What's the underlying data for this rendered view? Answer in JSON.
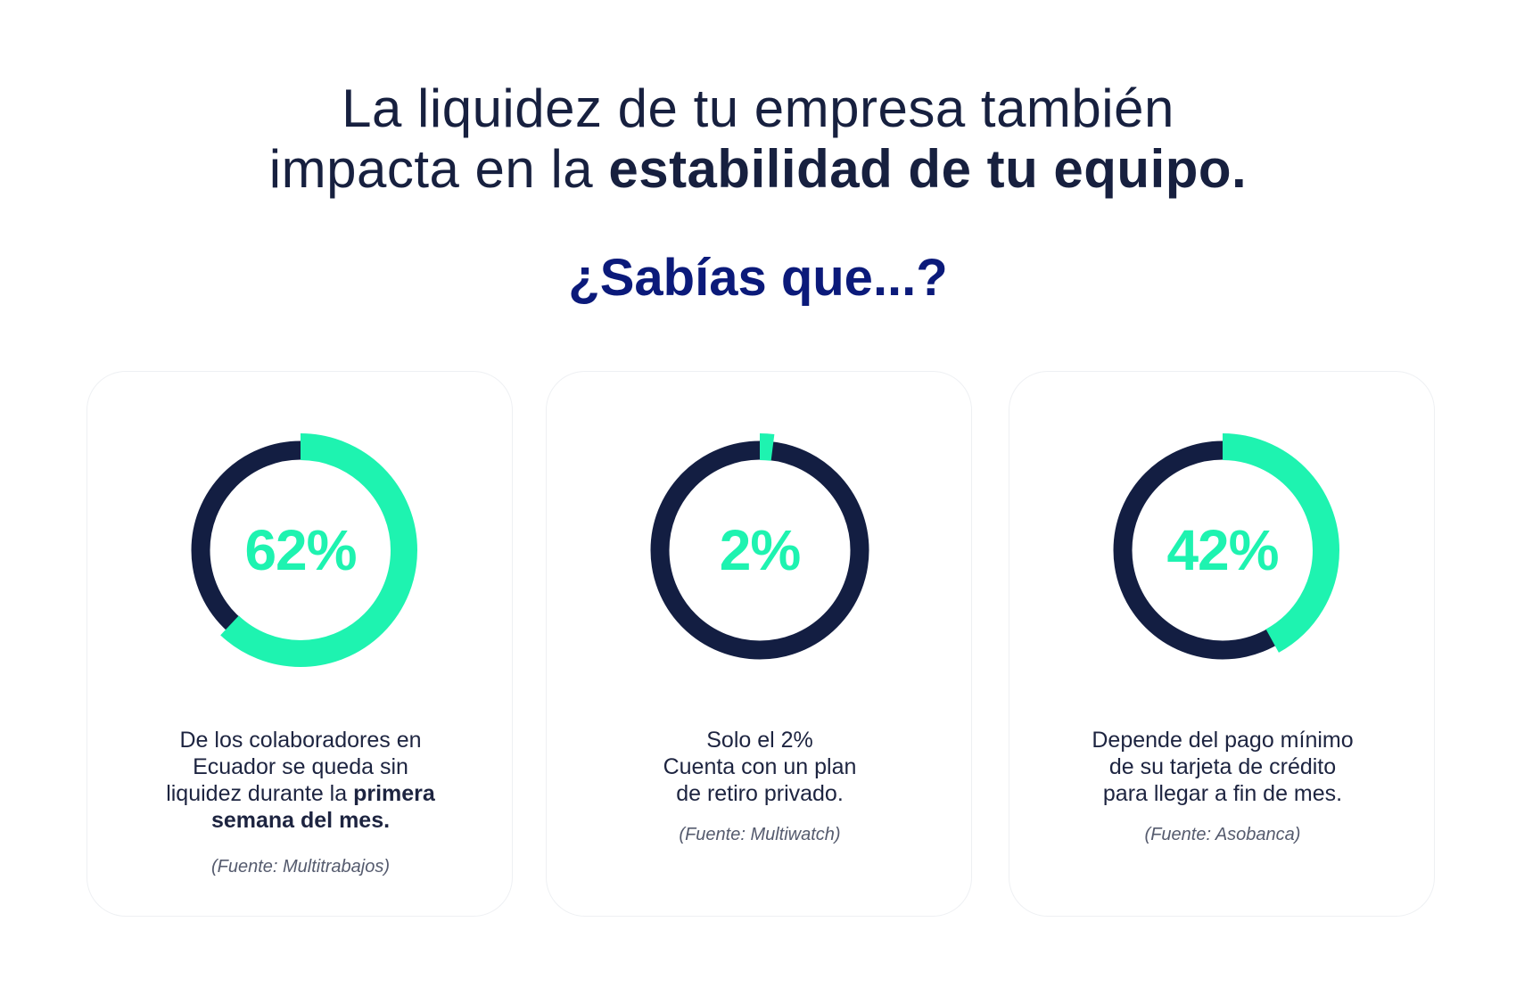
{
  "headline": {
    "line1": "La liquidez de tu empresa también",
    "line2_regular": "impacta en la ",
    "line2_bold": "estabilidad de tu equipo."
  },
  "subheading": "¿Sabías que...?",
  "colors": {
    "ring_track": "#131e42",
    "ring_fill": "#1ef3b0",
    "title": "#17203f",
    "subheading": "#0b1a7a"
  },
  "cards": [
    {
      "percent_label": "62%",
      "percent_value": 0.62,
      "lines": [
        "De los colaboradores en",
        "Ecuador se queda sin"
      ],
      "line3_regular": "liquidez durante la ",
      "line3_bold": "primera",
      "line4_bold": "semana del mes.",
      "source": "(Fuente: Multitrabajos)"
    },
    {
      "percent_label": "2%",
      "percent_value": 0.02,
      "lines": [
        "Solo el 2%",
        "Cuenta con un plan",
        "de retiro privado."
      ],
      "source": "(Fuente: Multiwatch)"
    },
    {
      "percent_label": "42%",
      "percent_value": 0.42,
      "lines": [
        "Depende del pago mínimo",
        "de su tarjeta de crédito",
        "para llegar a fin de mes."
      ],
      "source": "(Fuente:  Asobanca)"
    }
  ]
}
